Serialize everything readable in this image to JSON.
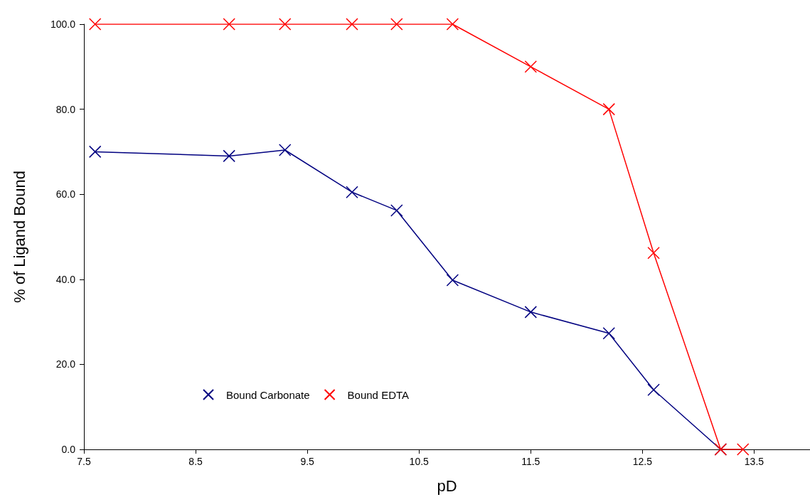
{
  "chart_data": {
    "type": "line",
    "xlabel": "pD",
    "ylabel": "% of Ligand Bound",
    "x": [
      7.6,
      8.8,
      9.3,
      9.9,
      10.3,
      10.8,
      11.5,
      12.2,
      12.6,
      13.2,
      13.4
    ],
    "series": [
      {
        "name": "Bound Carbonate",
        "color": "#000080",
        "values": [
          70,
          69,
          70.4,
          60.5,
          56.2,
          39.8,
          32.3,
          27.3,
          14.0,
          0,
          null
        ]
      },
      {
        "name": "Bound EDTA",
        "color": "#ff0000",
        "values": [
          100,
          100,
          100,
          100,
          100,
          100,
          90,
          80,
          46.2,
          0,
          0
        ]
      }
    ],
    "xlim": [
      7.5,
      14.0
    ],
    "xticks": [
      7.5,
      8.5,
      9.5,
      10.5,
      11.5,
      12.5,
      13.5
    ],
    "ylim": [
      0,
      100
    ],
    "yticks": [
      {
        "value": 0,
        "label": "0.0"
      },
      {
        "value": 20,
        "label": "20.0"
      },
      {
        "value": 40,
        "label": "40.0"
      },
      {
        "value": 60,
        "label": "60.0"
      },
      {
        "value": 80,
        "label": "80.0"
      },
      {
        "value": 100,
        "label": "100.0"
      }
    ],
    "grid": false,
    "legend": "bottom left",
    "marker": "cross",
    "line_style": "solid"
  }
}
